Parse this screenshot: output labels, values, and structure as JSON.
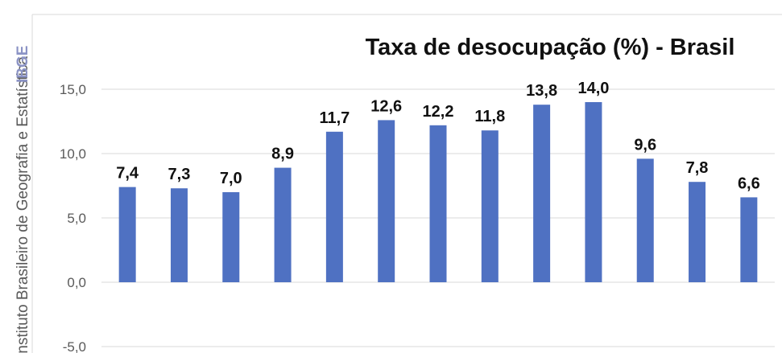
{
  "side_caption": {
    "brand": "IBGE",
    "text": "Instituto Brasileiro de Geografia e Estatística"
  },
  "chart_data": {
    "type": "bar",
    "title": "Taxa de desocupação (%) - Brasil",
    "xlabel": "",
    "ylabel": "",
    "categories": [
      "",
      "",
      "",
      "",
      "",
      "",
      "",
      "",
      "",
      "",
      "",
      "",
      ""
    ],
    "values": [
      7.4,
      7.3,
      7.0,
      8.9,
      11.7,
      12.6,
      12.2,
      11.8,
      13.8,
      14.0,
      9.6,
      7.8,
      6.6
    ],
    "data_labels": [
      "7,4",
      "7,3",
      "7,0",
      "8,9",
      "11,7",
      "12,6",
      "12,2",
      "11,8",
      "13,8",
      "14,0",
      "9,6",
      "7,8",
      "6,6"
    ],
    "ylim": [
      -5,
      15
    ],
    "yticks": [
      15,
      10,
      5,
      0,
      -5
    ],
    "ytick_labels": [
      "15,0",
      "10,0",
      "5,0",
      "0,0",
      "-5,0"
    ],
    "grid": true,
    "legend": "none",
    "bar_color": "#4f71c2",
    "grid_color": "#d9d9d9"
  }
}
